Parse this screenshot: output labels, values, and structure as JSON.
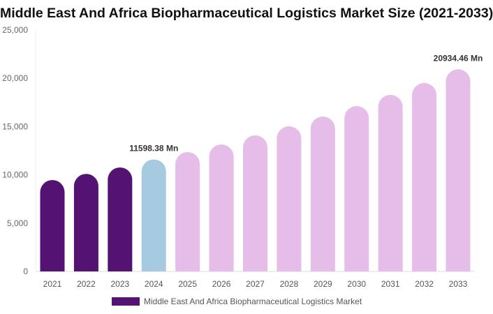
{
  "chart_data": {
    "type": "bar",
    "title": "Middle East And Africa Biopharmaceutical Logistics Market Size (2021-2033)",
    "categories": [
      "2021",
      "2022",
      "2023",
      "2024",
      "2025",
      "2026",
      "2027",
      "2028",
      "2029",
      "2030",
      "2031",
      "2032",
      "2033"
    ],
    "series": [
      {
        "name": "Middle East And Africa Biopharmaceutical Logistics Market",
        "values": [
          9470,
          10100,
          10770,
          11598.38,
          12360,
          13150,
          14090,
          15030,
          16040,
          17120,
          18280,
          19510,
          20934.46
        ]
      }
    ],
    "data_labels": [
      {
        "category": "2024",
        "text": "11598.38 Mn"
      },
      {
        "category": "2033",
        "text": "20934.46 Mn"
      }
    ],
    "yticks": [
      "0",
      "5,000",
      "10,000",
      "15,000",
      "20,000",
      "25,000"
    ],
    "ylim": [
      0,
      25000
    ],
    "xlabel": "",
    "ylabel": "",
    "grid": false,
    "legend_position": "bottom",
    "colors": {
      "historical": "#541273",
      "base_year": "#A6CADF",
      "forecast": "#E6BCE8"
    }
  }
}
